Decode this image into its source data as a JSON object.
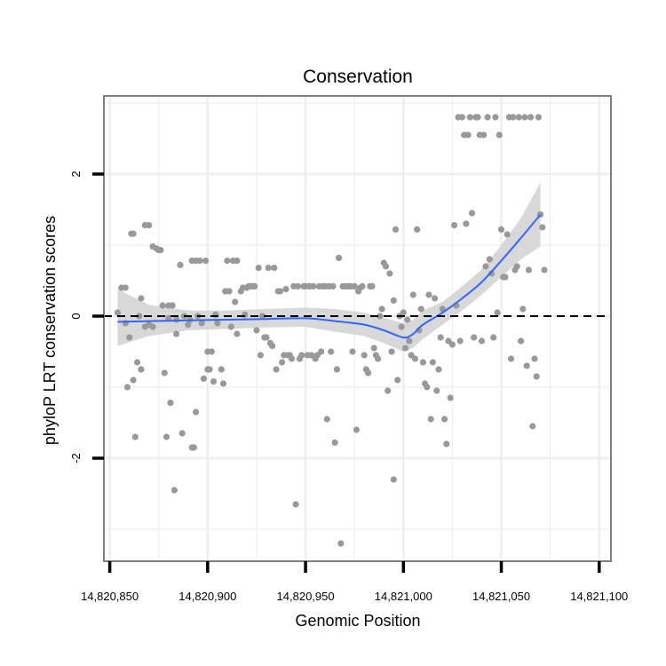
{
  "chart_data": {
    "type": "scatter",
    "title": "Conservation",
    "xlabel": "Genomic Position",
    "ylabel": "phyloP LRT conservation scores",
    "xlim": [
      14820847,
      14821106
    ],
    "ylim": [
      -3.45,
      3.1
    ],
    "x_ticks": [
      14820850,
      14820900,
      14820950,
      14821000,
      14821050,
      14821100
    ],
    "x_tick_labels": [
      "14,820,850",
      "14,820,900",
      "14,820,950",
      "14,821,000",
      "14,821,050",
      "14,821,100"
    ],
    "y_ticks": [
      -2,
      0,
      2
    ],
    "y_tick_labels": [
      "-2",
      "0",
      "2"
    ],
    "reference_line": 0,
    "grid": true,
    "colors": {
      "points": "#999999",
      "smooth": "#3366FF",
      "ribbon": "#d4d4d4",
      "grid": "#eeeeee",
      "panel_border": "#7f7f7f",
      "refline": "#000000"
    },
    "points": [
      [
        14820854,
        0.05
      ],
      [
        14820856,
        0.4
      ],
      [
        14820858,
        0.4
      ],
      [
        14820858,
        -0.1
      ],
      [
        14820859,
        -1.0
      ],
      [
        14820860,
        -0.3
      ],
      [
        14820861,
        1.16
      ],
      [
        14820862,
        -0.9
      ],
      [
        14820863,
        -1.7
      ],
      [
        14820864,
        -0.65
      ],
      [
        14820865,
        0.0
      ],
      [
        14820866,
        0.25
      ],
      [
        14820866,
        -0.75
      ],
      [
        14820868,
        1.28
      ],
      [
        14820868,
        -0.15
      ],
      [
        14820870,
        1.28
      ],
      [
        14820870,
        -0.12
      ],
      [
        14820872,
        0.98
      ],
      [
        14820872,
        -0.15
      ],
      [
        14820874,
        0.95
      ],
      [
        14820875,
        0.93
      ],
      [
        14820876,
        0.93
      ],
      [
        14820877,
        0.15
      ],
      [
        14820878,
        -0.8
      ],
      [
        14820879,
        -1.7
      ],
      [
        14820880,
        -0.03
      ],
      [
        14820880,
        0.15
      ],
      [
        14820881,
        -1.22
      ],
      [
        14820882,
        0.15
      ],
      [
        14820883,
        -2.45
      ],
      [
        14820884,
        -0.05
      ],
      [
        14820884,
        -0.25
      ],
      [
        14820886,
        0.72
      ],
      [
        14820887,
        -1.65
      ],
      [
        14820888,
        0.0
      ],
      [
        14820890,
        -0.12
      ],
      [
        14820891,
        -0.05
      ],
      [
        14820892,
        0.78
      ],
      [
        14820893,
        -1.85
      ],
      [
        14820894,
        -1.35
      ],
      [
        14820894,
        0.78
      ],
      [
        14820895,
        0.0
      ],
      [
        14820896,
        0.78
      ],
      [
        14820897,
        -0.1
      ],
      [
        14820898,
        -0.88
      ],
      [
        14820899,
        0.78
      ],
      [
        14820900,
        -0.75
      ],
      [
        14820901,
        -0.75
      ],
      [
        14820902,
        -0.5
      ],
      [
        14820903,
        -0.92
      ],
      [
        14820904,
        0.02
      ],
      [
        14820905,
        -0.1
      ],
      [
        14820907,
        -0.75
      ],
      [
        14820908,
        -0.95
      ],
      [
        14820909,
        0.35
      ],
      [
        14820910,
        0.78
      ],
      [
        14820911,
        0.35
      ],
      [
        14820912,
        -0.15
      ],
      [
        14820913,
        0.78
      ],
      [
        14820914,
        0.2
      ],
      [
        14820915,
        0.78
      ],
      [
        14820915,
        -0.25
      ],
      [
        14820917,
        0.35
      ],
      [
        14820918,
        0.4
      ],
      [
        14820919,
        0.02
      ],
      [
        14820920,
        0.4
      ],
      [
        14820921,
        0.42
      ],
      [
        14820922,
        0.42
      ],
      [
        14820923,
        0.42
      ],
      [
        14820924,
        0.42
      ],
      [
        14820925,
        -0.2
      ],
      [
        14820926,
        0.68
      ],
      [
        14820927,
        -0.55
      ],
      [
        14820928,
        0.0
      ],
      [
        14820929,
        -0.3
      ],
      [
        14820930,
        -0.3
      ],
      [
        14820931,
        0.68
      ],
      [
        14820932,
        -0.38
      ],
      [
        14820933,
        -0.42
      ],
      [
        14820934,
        0.68
      ],
      [
        14820935,
        -0.75
      ],
      [
        14820936,
        0.35
      ],
      [
        14820937,
        0.35
      ],
      [
        14820938,
        -0.65
      ],
      [
        14820939,
        -0.55
      ],
      [
        14820940,
        0.38
      ],
      [
        14820941,
        -0.55
      ],
      [
        14820942,
        -0.55
      ],
      [
        14820943,
        -0.6
      ],
      [
        14820944,
        0.42
      ],
      [
        14820945,
        -2.65
      ],
      [
        14820946,
        0.42
      ],
      [
        14820947,
        -0.6
      ],
      [
        14820948,
        -0.55
      ],
      [
        14820949,
        0.42
      ],
      [
        14820950,
        0.42
      ],
      [
        14820951,
        -0.55
      ],
      [
        14820952,
        0.42
      ],
      [
        14820953,
        -0.55
      ],
      [
        14820954,
        0.42
      ],
      [
        14820955,
        -0.6
      ],
      [
        14820956,
        -0.55
      ],
      [
        14820957,
        0.42
      ],
      [
        14820958,
        -0.5
      ],
      [
        14820959,
        0.42
      ],
      [
        14820960,
        0.42
      ],
      [
        14820961,
        -1.45
      ],
      [
        14820962,
        0.42
      ],
      [
        14820963,
        -0.5
      ],
      [
        14820964,
        0.42
      ],
      [
        14820965,
        -1.78
      ],
      [
        14820966,
        -0.75
      ],
      [
        14820967,
        0.82
      ],
      [
        14820968,
        -3.2
      ],
      [
        14820969,
        0.42
      ],
      [
        14820970,
        0.42
      ],
      [
        14820971,
        0.42
      ],
      [
        14820972,
        0.42
      ],
      [
        14820973,
        0.42
      ],
      [
        14820974,
        -0.5
      ],
      [
        14820975,
        0.42
      ],
      [
        14820976,
        -1.6
      ],
      [
        14820977,
        0.35
      ],
      [
        14820978,
        0.4
      ],
      [
        14820979,
        0.42
      ],
      [
        14820980,
        -0.55
      ],
      [
        14820981,
        -0.75
      ],
      [
        14820982,
        -0.8
      ],
      [
        14820983,
        0.42
      ],
      [
        14820984,
        0.42
      ],
      [
        14820985,
        -0.45
      ],
      [
        14820986,
        -0.55
      ],
      [
        14820987,
        -0.6
      ],
      [
        14820988,
        0.0
      ],
      [
        14820989,
        0.1
      ],
      [
        14820990,
        0.75
      ],
      [
        14820991,
        0.7
      ],
      [
        14820992,
        -1.05
      ],
      [
        14820993,
        0.6
      ],
      [
        14820994,
        -0.5
      ],
      [
        14820995,
        0.22
      ],
      [
        14820995,
        -2.3
      ],
      [
        14820996,
        1.22
      ],
      [
        14820997,
        -0.9
      ],
      [
        14820998,
        0.0
      ],
      [
        14820999,
        -0.15
      ],
      [
        14821000,
        0.05
      ],
      [
        14821001,
        -0.45
      ],
      [
        14821002,
        -0.05
      ],
      [
        14821003,
        -0.35
      ],
      [
        14821004,
        -0.55
      ],
      [
        14821005,
        0.3
      ],
      [
        14821006,
        -0.6
      ],
      [
        14821007,
        1.22
      ],
      [
        14821008,
        -0.2
      ],
      [
        14821009,
        0.1
      ],
      [
        14821010,
        -0.65
      ],
      [
        14821011,
        -0.95
      ],
      [
        14821012,
        -1.0
      ],
      [
        14821013,
        0.3
      ],
      [
        14821014,
        -1.45
      ],
      [
        14821015,
        -0.65
      ],
      [
        14821016,
        0.25
      ],
      [
        14821017,
        -1.05
      ],
      [
        14821018,
        -0.75
      ],
      [
        14821019,
        -0.3
      ],
      [
        14821020,
        0.1
      ],
      [
        14821021,
        -1.45
      ],
      [
        14821022,
        -1.8
      ],
      [
        14821023,
        -0.35
      ],
      [
        14821024,
        -1.15
      ],
      [
        14821025,
        -0.4
      ],
      [
        14821026,
        1.28
      ],
      [
        14821027,
        0.15
      ],
      [
        14821028,
        2.8
      ],
      [
        14821029,
        -0.35
      ],
      [
        14821030,
        2.8
      ],
      [
        14821031,
        2.55
      ],
      [
        14821032,
        1.3
      ],
      [
        14821033,
        2.55
      ],
      [
        14821034,
        2.8
      ],
      [
        14821035,
        1.45
      ],
      [
        14821036,
        -0.3
      ],
      [
        14821037,
        2.8
      ],
      [
        14821038,
        2.8
      ],
      [
        14821039,
        2.55
      ],
      [
        14821040,
        -0.35
      ],
      [
        14821041,
        2.55
      ],
      [
        14821042,
        0.7
      ],
      [
        14821043,
        2.8
      ],
      [
        14821044,
        0.8
      ],
      [
        14821045,
        0.6
      ],
      [
        14821046,
        -0.3
      ],
      [
        14821047,
        2.8
      ],
      [
        14821048,
        0.05
      ],
      [
        14821049,
        2.55
      ],
      [
        14821050,
        1.22
      ],
      [
        14821051,
        0.55
      ],
      [
        14821052,
        0.55
      ],
      [
        14821053,
        1.15
      ],
      [
        14821054,
        2.8
      ],
      [
        14821055,
        -0.6
      ],
      [
        14821056,
        2.8
      ],
      [
        14821057,
        0.65
      ],
      [
        14821058,
        0.7
      ],
      [
        14821059,
        2.8
      ],
      [
        14821060,
        -0.35
      ],
      [
        14821061,
        0.1
      ],
      [
        14821062,
        2.8
      ],
      [
        14821063,
        -0.7
      ],
      [
        14821064,
        0.65
      ],
      [
        14821065,
        2.8
      ],
      [
        14821066,
        -1.55
      ],
      [
        14821067,
        -0.6
      ],
      [
        14821068,
        -0.85
      ],
      [
        14821069,
        2.8
      ],
      [
        14821070,
        1.43
      ],
      [
        14821071,
        1.25
      ],
      [
        14821072,
        0.65
      ],
      [
        14820862,
        1.16
      ],
      [
        14820866,
        -0.75
      ],
      [
        14820892,
        -1.85
      ],
      [
        14820900,
        -0.5
      ],
      [
        14820952,
        0.42
      ]
    ],
    "smooth": {
      "x": [
        14820854,
        14820870,
        14820890,
        14820910,
        14820930,
        14820950,
        14820965,
        14820980,
        14820990,
        14821000,
        14821005,
        14821010,
        14821020,
        14821030,
        14821040,
        14821050,
        14821060,
        14821070
      ],
      "y": [
        -0.08,
        -0.07,
        -0.06,
        -0.05,
        -0.04,
        -0.03,
        -0.07,
        -0.12,
        -0.2,
        -0.3,
        -0.25,
        -0.12,
        0.05,
        0.25,
        0.48,
        0.78,
        1.1,
        1.43
      ],
      "lower": [
        -0.42,
        -0.28,
        -0.2,
        -0.18,
        -0.16,
        -0.15,
        -0.22,
        -0.28,
        -0.38,
        -0.5,
        -0.45,
        -0.32,
        -0.12,
        0.08,
        0.3,
        0.55,
        0.8,
        0.98
      ],
      "upper": [
        0.38,
        0.16,
        0.08,
        0.08,
        0.1,
        0.12,
        0.1,
        0.05,
        -0.02,
        -0.1,
        -0.05,
        0.08,
        0.2,
        0.42,
        0.66,
        1.0,
        1.38,
        1.88
      ]
    }
  }
}
